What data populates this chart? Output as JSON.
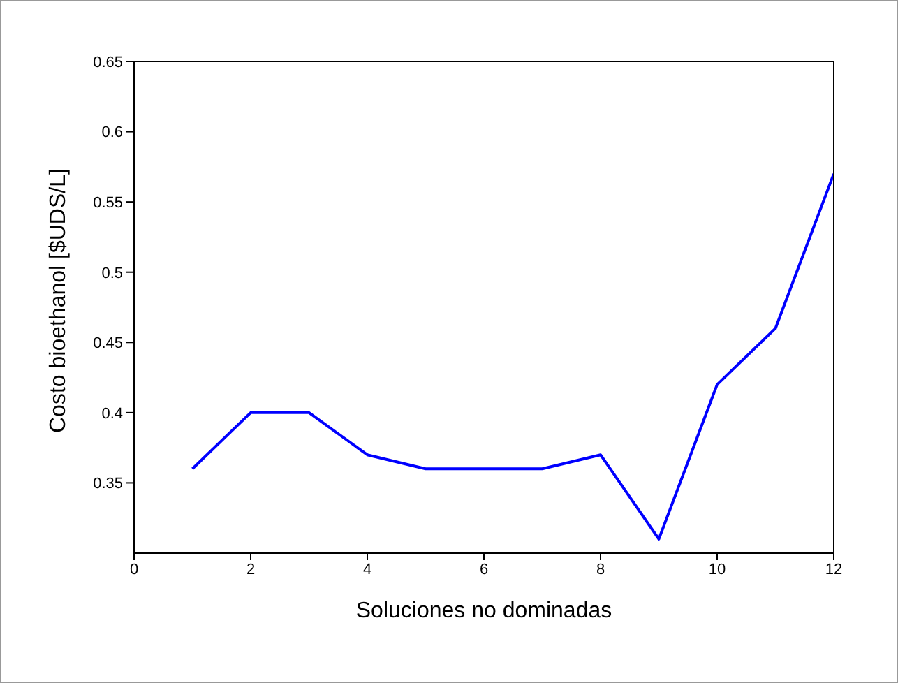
{
  "chart_data": {
    "type": "line",
    "xlabel": "Soluciones no dominadas",
    "ylabel": "Costo bioethanol [$UDS/L]",
    "x": [
      1,
      2,
      3,
      4,
      5,
      6,
      7,
      8,
      9,
      10,
      11,
      12
    ],
    "series": [
      {
        "color": "#0000ff",
        "values": [
          0.36,
          0.4,
          0.4,
          0.37,
          0.36,
          0.36,
          0.36,
          0.37,
          0.31,
          0.42,
          0.46,
          0.57
        ]
      }
    ],
    "xlim": [
      0,
      12
    ],
    "xticks": [
      0,
      2,
      4,
      6,
      8,
      10,
      12
    ],
    "ylim": [
      0.3,
      0.65
    ],
    "yticks": [
      0.35,
      0.4,
      0.45,
      0.5,
      0.55,
      0.6,
      0.65
    ],
    "grid": false,
    "legend": false,
    "marker": "none",
    "line_style": "solid"
  }
}
